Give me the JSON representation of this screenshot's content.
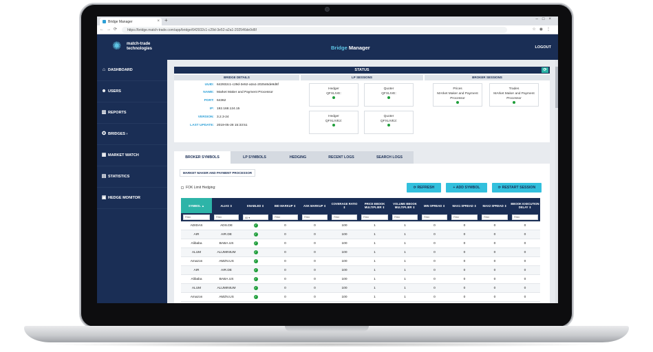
{
  "browser": {
    "tab_title": "Bridge Manager",
    "url": "https://bridge.match-trade.com/app/bridge/642932c1-c29d-3e52-a2a1-202546de9d6f"
  },
  "header": {
    "logo_line1": "match-trade",
    "logo_line2": "technologies",
    "title_bridge": "Bridge",
    "title_manager": "Manager",
    "logout": "LOGOUT"
  },
  "sidebar": {
    "items": [
      {
        "label": "DASHBOARD",
        "icon": "home-icon"
      },
      {
        "label": "USERS",
        "icon": "users-icon"
      },
      {
        "label": "REPORTS",
        "icon": "chart-icon"
      },
      {
        "label": "BRIDGES",
        "icon": "bridge-icon"
      },
      {
        "label": "MARKET WATCH",
        "icon": "watch-icon"
      },
      {
        "label": "STATISTICS",
        "icon": "statistics-icon"
      },
      {
        "label": "HEDGE MONITOR",
        "icon": "monitor-icon"
      }
    ],
    "bridges_chevron": "›"
  },
  "status": {
    "title": "STATUS",
    "bridge_details_title": "BRIDGE DETAILS",
    "lp_sessions_title": "LP SESSIONS",
    "broker_sessions_title": "BROKER SESSIONS",
    "details": [
      {
        "key": "UUID:",
        "value": "642932c1-c29d-3e52-a2a1-202546de9d6f"
      },
      {
        "key": "NAME:",
        "value": "Market Maker and Payment Processor"
      },
      {
        "key": "PORT:",
        "value": "64362"
      },
      {
        "key": "IP:",
        "value": "192.168.124.15"
      },
      {
        "key": "VERSION:",
        "value": "3.2.3-24"
      },
      {
        "key": "LAST UPDATE:",
        "value": "2019-05-28 15:33:51"
      }
    ],
    "lp_sessions": [
      {
        "role": "Hedger",
        "name": "QFXLIVE:"
      },
      {
        "role": "Quoter",
        "name": "QFXLIVE:"
      },
      {
        "role": "Hedger",
        "name": "QFXLIVE2:"
      },
      {
        "role": "Quoter",
        "name": "QFXLIVE2:"
      }
    ],
    "broker_sessions": [
      {
        "role": "Prices",
        "name": "MArket Maker and Payment Processor"
      },
      {
        "role": "Trades",
        "name": "MArket Maker and Payment Processor"
      }
    ]
  },
  "tabs": [
    "BROKER SYMBOLS",
    "LP SYMBOLS",
    "HEDGING",
    "RECENT LOGS",
    "SEARCH LOGS"
  ],
  "subtab": "MARKET MAKER AND PAYMENT PROCESSOR",
  "fok_label": "FOK Limit Hedging:",
  "actions": {
    "refresh": "REFRESH",
    "add_symbol": "ADD SYMBOL",
    "restart_session": "RESTART SESSION"
  },
  "table": {
    "columns": [
      "SYMBOL ▲",
      "ALIAS ⇕",
      "ENABLED ⇕",
      "BID MARKUP ⇕",
      "ASK MARKUP ⇕",
      "COVERAGE RATIO ⇕",
      "PRICE BBOOK MULTIPLIER ⇕",
      "VOLUME BBOOK MULTIPLIER ⇕",
      "MIN SPREAD ⇕",
      "MAX1 SPREAD ⇕",
      "MAX2 SPREAD ⇕",
      "BBOOK EXECUTION DELAY ⇕"
    ],
    "filter_placeholder": "Filter",
    "enabled_filter": "All",
    "rows": [
      [
        "ADIDAS",
        "ADS.DE",
        "0",
        "0",
        "100",
        "1",
        "1",
        "0",
        "0",
        "0",
        "0"
      ],
      [
        "AIR",
        "AIR.DE",
        "0",
        "0",
        "100",
        "1",
        "1",
        "0",
        "0",
        "0",
        "0"
      ],
      [
        "Alibaba",
        "BABA.US",
        "0",
        "0",
        "100",
        "1",
        "1",
        "0",
        "0",
        "0",
        "0"
      ],
      [
        "ALUM",
        "ALUMINIUM",
        "0",
        "0",
        "100",
        "1",
        "1",
        "0",
        "0",
        "0",
        "0"
      ],
      [
        "Amazon",
        "AMZN.US",
        "0",
        "0",
        "100",
        "1",
        "1",
        "0",
        "0",
        "0",
        "0"
      ],
      [
        "AIR",
        "AIR.DE",
        "0",
        "0",
        "100",
        "1",
        "1",
        "0",
        "0",
        "0",
        "0"
      ],
      [
        "Alibaba",
        "BABA.US",
        "0",
        "0",
        "100",
        "1",
        "1",
        "0",
        "0",
        "0",
        "0"
      ],
      [
        "ALUM",
        "ALUMINIUM",
        "0",
        "0",
        "100",
        "1",
        "1",
        "0",
        "0",
        "0",
        "0"
      ],
      [
        "Amazon",
        "AMZN.US",
        "0",
        "0",
        "100",
        "1",
        "1",
        "0",
        "0",
        "0",
        "0"
      ]
    ]
  },
  "colors": {
    "navy": "#1a2e55",
    "accent": "#32c0dd",
    "teal": "#2db4a8",
    "ok": "#1e9e3a"
  }
}
